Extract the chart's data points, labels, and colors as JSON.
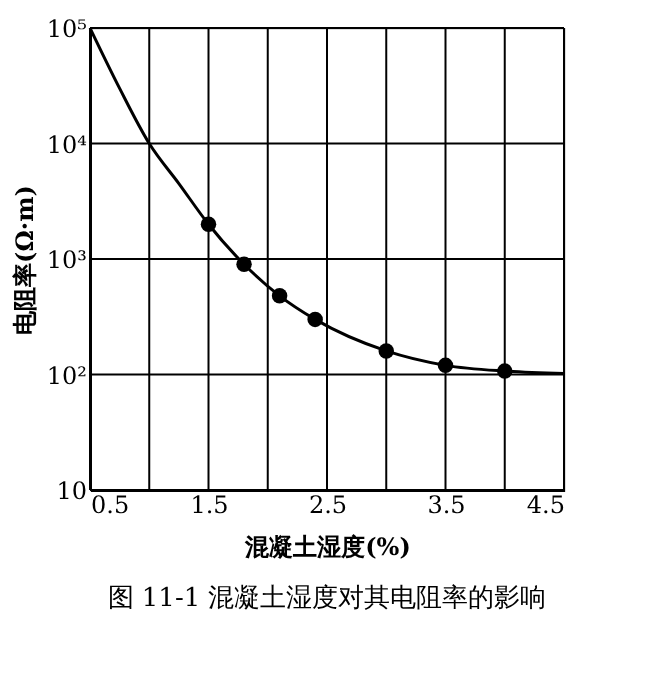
{
  "chart_data": {
    "type": "line",
    "xlabel": "混凝土湿度(%)",
    "ylabel": "电阻率(Ω·m)",
    "series": [
      {
        "type": "line",
        "color": "#000000",
        "marker": "none",
        "x": [
          0.5,
          0.75,
          1.0,
          1.25,
          1.5,
          1.8,
          2.1,
          2.4,
          3.0,
          3.5,
          4.0,
          4.5
        ],
        "values": [
          100000,
          30000,
          10000,
          4500,
          2000,
          900,
          480,
          300,
          160,
          120,
          107,
          102
        ]
      },
      {
        "type": "scatter",
        "color": "#000000",
        "marker": "circle",
        "x": [
          1.5,
          1.8,
          2.1,
          2.4,
          3.0,
          3.5,
          4.0
        ],
        "values": [
          2000,
          900,
          480,
          300,
          160,
          120,
          107
        ]
      }
    ],
    "xlim": [
      0.5,
      4.5
    ],
    "xticks": [
      0.5,
      {
        "value": 1.0,
        "label": null
      },
      1.5,
      {
        "value": 2.0,
        "label": null
      },
      2.5,
      {
        "value": 3.0,
        "label": null
      },
      3.5,
      {
        "value": 4.0,
        "label": null
      },
      4.5
    ],
    "ylim": [
      10,
      100000
    ],
    "yticks": [
      10,
      {
        "value": 100,
        "label": "10²"
      },
      {
        "value": 1000,
        "label": "10³"
      },
      {
        "value": 10000,
        "label": "10⁴"
      },
      {
        "value": 100000,
        "label": "10⁵"
      }
    ],
    "log": true,
    "grid": true,
    "annotations": [
      "图 11-1   混凝土湿度对其电阻率的影响"
    ]
  }
}
